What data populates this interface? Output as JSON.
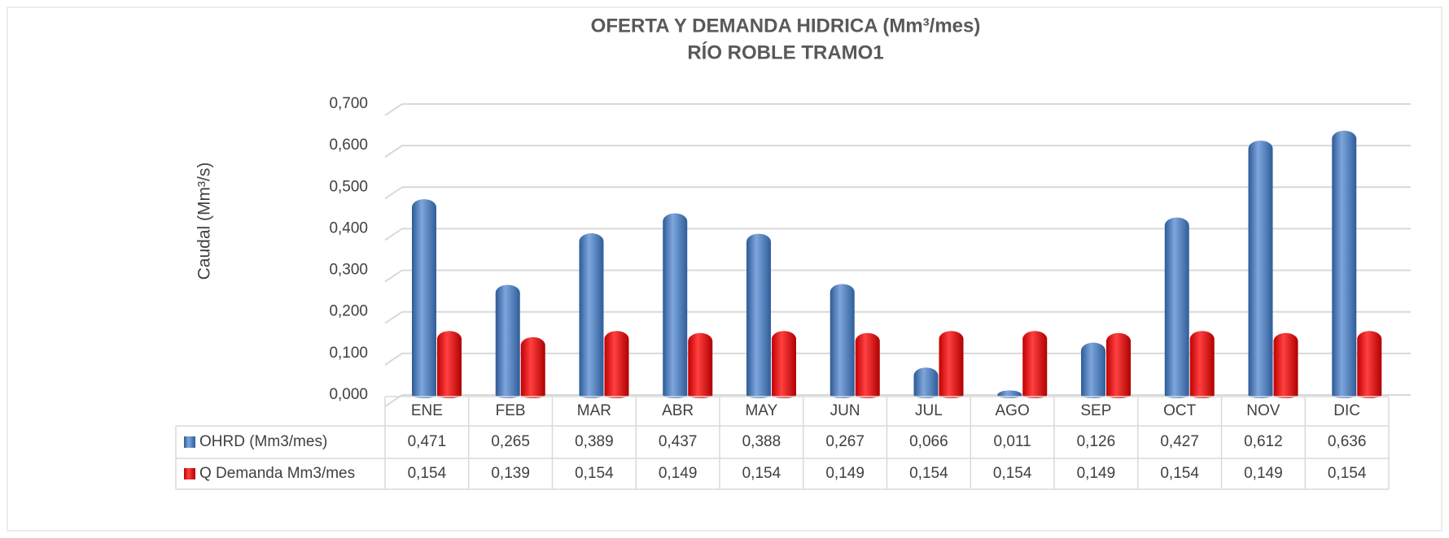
{
  "chart_data": {
    "type": "bar",
    "title": [
      "OFERTA Y DEMANDA HIDRICA (Mm³/mes)",
      "RÍO ROBLE TRAMO1"
    ],
    "y_label": "Caudal (Mm³/s)",
    "categories": [
      "ENE",
      "FEB",
      "MAR",
      "ABR",
      "MAY",
      "JUN",
      "JUL",
      "AGO",
      "SEP",
      "OCT",
      "NOV",
      "DIC"
    ],
    "series": [
      {
        "name": "OHRD (Mm3/mes)",
        "color": "#4f81bd",
        "values": [
          0.471,
          0.265,
          0.389,
          0.437,
          0.388,
          0.267,
          0.066,
          0.011,
          0.126,
          0.427,
          0.612,
          0.636
        ],
        "value_labels": [
          "0,471",
          "0,265",
          "0,389",
          "0,437",
          "0,388",
          "0,267",
          "0,066",
          "0,011",
          "0,126",
          "0,427",
          "0,612",
          "0,636"
        ]
      },
      {
        "name": "Q Demanda Mm3/mes",
        "color": "#ff0000",
        "values": [
          0.154,
          0.139,
          0.154,
          0.149,
          0.154,
          0.149,
          0.154,
          0.154,
          0.149,
          0.154,
          0.149,
          0.154
        ],
        "value_labels": [
          "0,154",
          "0,139",
          "0,154",
          "0,149",
          "0,154",
          "0,149",
          "0,154",
          "0,154",
          "0,149",
          "0,154",
          "0,149",
          "0,154"
        ]
      }
    ],
    "ylim": [
      0,
      0.7
    ],
    "yticks": [
      {
        "value": 0,
        "label": "0,000"
      },
      {
        "value": 0.1,
        "label": "0,100"
      },
      {
        "value": 0.2,
        "label": "0,200"
      },
      {
        "value": 0.3,
        "label": "0,300"
      },
      {
        "value": 0.4,
        "label": "0,400"
      },
      {
        "value": 0.5,
        "label": "0,500"
      },
      {
        "value": 0.6,
        "label": "0,600"
      },
      {
        "value": 0.7,
        "label": "0,700"
      }
    ],
    "grid": true
  }
}
